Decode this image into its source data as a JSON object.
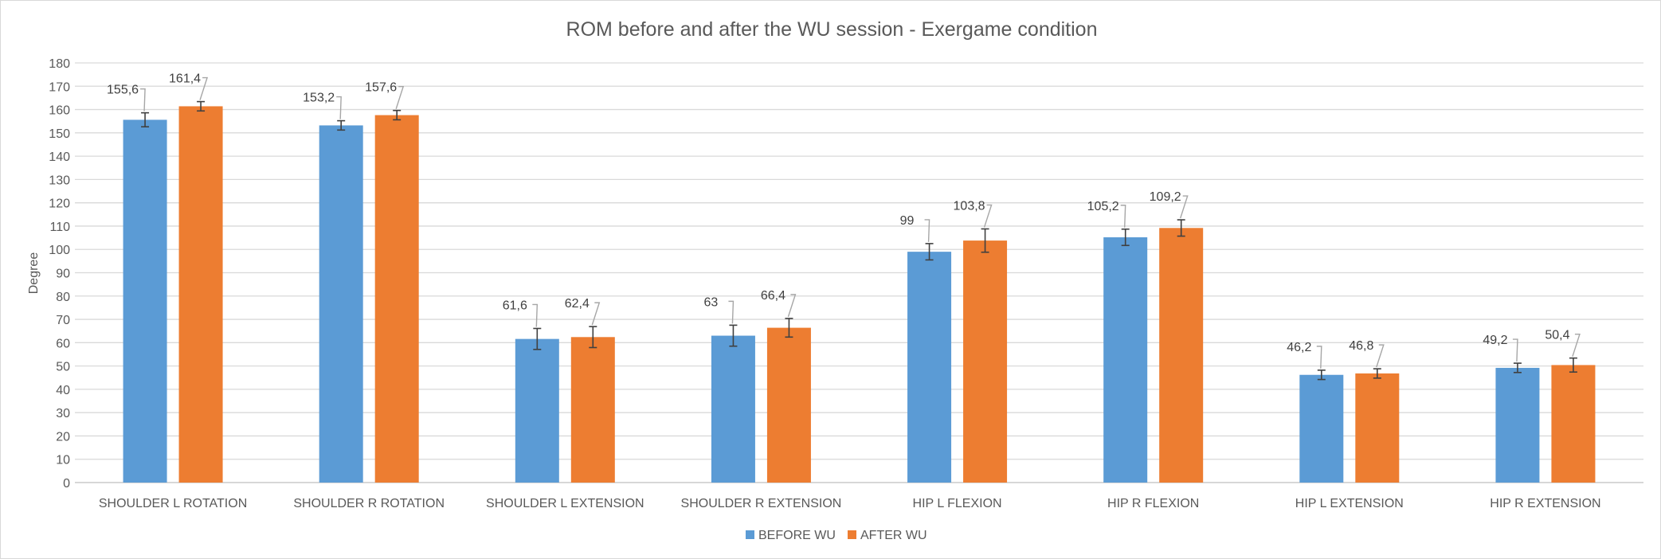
{
  "chart_data": {
    "type": "bar",
    "title": "ROM before and after the WU session - Exergame condition",
    "xlabel": "",
    "ylabel": "Degree",
    "ylim": [
      0,
      180
    ],
    "ytick_step": 10,
    "yticks": [
      "0",
      "10",
      "20",
      "30",
      "40",
      "50",
      "60",
      "70",
      "80",
      "90",
      "100",
      "110",
      "120",
      "130",
      "140",
      "150",
      "160",
      "170",
      "180"
    ],
    "grid": true,
    "legend_position": "bottom",
    "categories": [
      "SHOULDER L ROTATION",
      "SHOULDER R ROTATION",
      "SHOULDER L EXTENSION",
      "SHOULDER R EXTENSION",
      "HIP L FLEXION",
      "HIP R FLEXION",
      "HIP L EXTENSION",
      "HIP R EXTENSION"
    ],
    "series": [
      {
        "name": "BEFORE WU",
        "color": "#5b9bd5",
        "values": [
          155.6,
          153.2,
          61.6,
          63,
          99,
          105.2,
          46.2,
          49.2
        ],
        "labels": [
          "155,6",
          "153,2",
          "61,6",
          "63",
          "99",
          "105,2",
          "46,2",
          "49,2"
        ],
        "errors": [
          3,
          2,
          4.5,
          4.5,
          3.5,
          3.5,
          2,
          2
        ]
      },
      {
        "name": "AFTER WU",
        "color": "#ed7d31",
        "values": [
          161.4,
          157.6,
          62.4,
          66.4,
          103.8,
          109.2,
          46.8,
          50.4
        ],
        "labels": [
          "161,4",
          "157,6",
          "62,4",
          "66,4",
          "103,8",
          "109,2",
          "46,8",
          "50,4"
        ],
        "errors": [
          2,
          2,
          4.5,
          4,
          5,
          3.5,
          2,
          3
        ]
      }
    ]
  }
}
